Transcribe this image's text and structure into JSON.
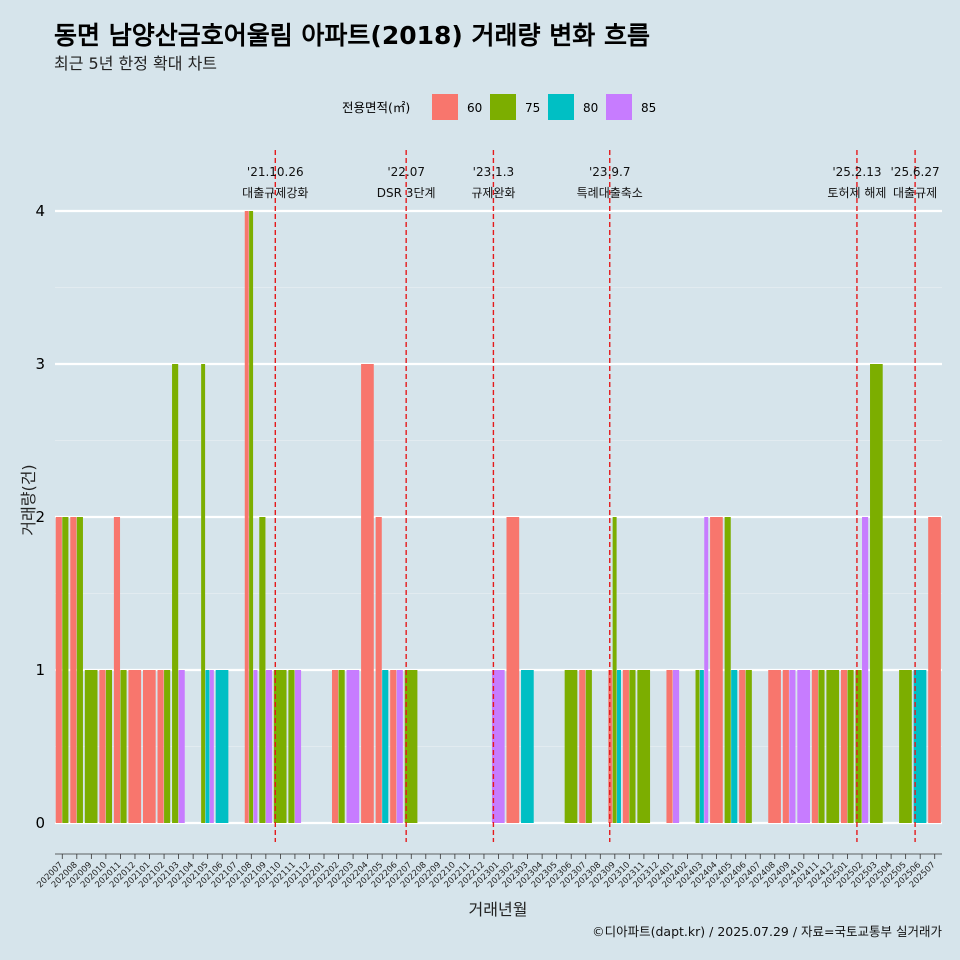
{
  "chart_data": {
    "type": "bar",
    "title": "동면 남양산금호어울림 아파트(2018) 거래량 변화 흐름",
    "subtitle": "최근 5년 한정 확대 차트",
    "xlabel": "거래년월",
    "ylabel": "거래량(건)",
    "ylim": [
      0,
      4
    ],
    "yticks": [
      0,
      1,
      2,
      3,
      4
    ],
    "grid": "horizontal",
    "legend": {
      "title": "전용면적(㎡)",
      "position": "top",
      "items": [
        {
          "name": "60",
          "color": "#F8766D"
        },
        {
          "name": "75",
          "color": "#7CAE00"
        },
        {
          "name": "80",
          "color": "#00BFC4"
        },
        {
          "name": "85",
          "color": "#C77CFF"
        }
      ]
    },
    "categories": [
      "202007",
      "202008",
      "202009",
      "202010",
      "202011",
      "202012",
      "202101",
      "202102",
      "202103",
      "202104",
      "202105",
      "202106",
      "202107",
      "202108",
      "202109",
      "202110",
      "202111",
      "202112",
      "202201",
      "202202",
      "202203",
      "202204",
      "202205",
      "202206",
      "202207",
      "202208",
      "202209",
      "202210",
      "202211",
      "202212",
      "202301",
      "202302",
      "202303",
      "202304",
      "202305",
      "202306",
      "202307",
      "202308",
      "202309",
      "202310",
      "202311",
      "202312",
      "202401",
      "202402",
      "202403",
      "202404",
      "202405",
      "202406",
      "202407",
      "202408",
      "202409",
      "202410",
      "202411",
      "202412",
      "202501",
      "202502",
      "202503",
      "202504",
      "202505",
      "202506",
      "202507"
    ],
    "series": [
      {
        "name": "60",
        "values": [
          2,
          2,
          0,
          1,
          2,
          1,
          1,
          1,
          0,
          0,
          0,
          0,
          0,
          4,
          0,
          0,
          0,
          0,
          0,
          1,
          0,
          3,
          2,
          1,
          0,
          0,
          0,
          0,
          0,
          0,
          0,
          2,
          0,
          0,
          0,
          0,
          1,
          0,
          1,
          1,
          0,
          0,
          1,
          0,
          0,
          2,
          0,
          1,
          0,
          1,
          1,
          0,
          1,
          0,
          1,
          0,
          0,
          0,
          0,
          0,
          2
        ]
      },
      {
        "name": "75",
        "values": [
          2,
          2,
          1,
          1,
          1,
          0,
          0,
          1,
          3,
          0,
          3,
          0,
          0,
          4,
          2,
          1,
          1,
          0,
          0,
          1,
          0,
          0,
          0,
          0,
          1,
          0,
          0,
          0,
          0,
          0,
          0,
          0,
          0,
          0,
          0,
          1,
          1,
          0,
          2,
          1,
          1,
          0,
          0,
          0,
          1,
          0,
          2,
          1,
          0,
          0,
          0,
          0,
          1,
          1,
          1,
          1,
          3,
          0,
          1,
          0,
          0
        ]
      },
      {
        "name": "80",
        "values": [
          0,
          0,
          0,
          0,
          0,
          0,
          0,
          0,
          0,
          0,
          1,
          1,
          0,
          0,
          0,
          0,
          0,
          0,
          0,
          0,
          0,
          0,
          1,
          0,
          0,
          0,
          0,
          0,
          0,
          0,
          0,
          0,
          1,
          0,
          0,
          0,
          0,
          0,
          1,
          0,
          0,
          0,
          0,
          0,
          1,
          0,
          1,
          0,
          0,
          0,
          0,
          0,
          0,
          0,
          0,
          0,
          0,
          0,
          0,
          1,
          0
        ]
      },
      {
        "name": "85",
        "values": [
          0,
          0,
          0,
          0,
          0,
          0,
          0,
          0,
          1,
          0,
          1,
          0,
          0,
          1,
          1,
          0,
          1,
          0,
          0,
          0,
          1,
          0,
          0,
          1,
          0,
          0,
          0,
          0,
          0,
          0,
          1,
          0,
          0,
          0,
          0,
          0,
          0,
          0,
          0,
          0,
          0,
          0,
          1,
          0,
          2,
          0,
          0,
          0,
          0,
          0,
          1,
          1,
          0,
          0,
          0,
          2,
          0,
          0,
          0,
          0,
          0
        ]
      }
    ],
    "annotations": [
      {
        "x": "202110",
        "date": "'21.10.26",
        "label": "대출규제강화"
      },
      {
        "x": "202207",
        "date": "'22.07",
        "label": "DSR 3단계"
      },
      {
        "x": "202301",
        "date": "'23.1.3",
        "label": "규제완화"
      },
      {
        "x": "202309",
        "date": "'23.9.7",
        "label": "특례대출축소"
      },
      {
        "x": "202502",
        "date": "'25.2.13",
        "label": "토허제 해제"
      },
      {
        "x": "202506",
        "date": "'25.6.27",
        "label": "대출규제"
      }
    ],
    "caption": "©디아파트(dapt.kr) / 2025.07.29 / 자료=국토교통부 실거래가"
  }
}
